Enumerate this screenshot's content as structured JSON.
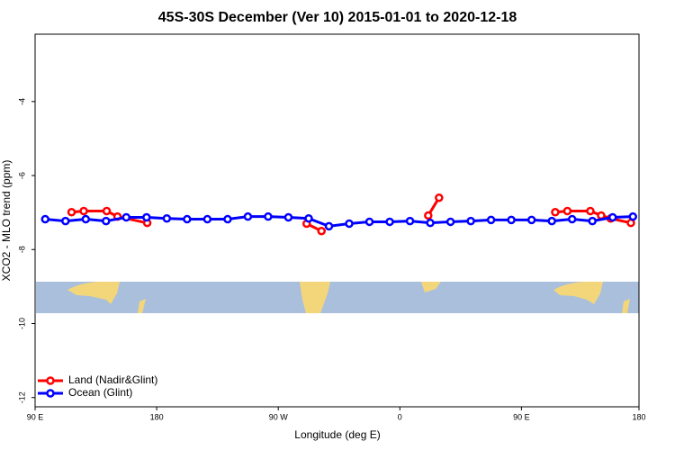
{
  "chart_data": {
    "type": "line",
    "title": "45S-30S December (Ver 10)   2015-01-01 to 2020-12-18",
    "x_label": "Longitude (deg E)",
    "y_label": "XCO2 - MLO trend (ppm)",
    "xlim": [
      90,
      537
    ],
    "ylim": [
      -12.25,
      -2.18
    ],
    "xticks": [
      {
        "value": 90,
        "label": "90 E"
      },
      {
        "value": 180,
        "label": "180"
      },
      {
        "value": 270,
        "label": "90 W"
      },
      {
        "value": 360,
        "label": "0"
      },
      {
        "value": 450,
        "label": "90 E"
      },
      {
        "value": 537,
        "label": "180"
      }
    ],
    "yticks": [
      -4,
      -6,
      -8,
      -10,
      -12
    ],
    "legend": "bottom-left",
    "series": [
      {
        "name": "Land (Nadir&Glint)",
        "color": "#ff0000",
        "x": [
          117,
          126,
          143,
          151,
          173,
          null,
          291,
          302,
          null,
          381,
          389,
          null,
          475,
          484,
          501,
          509,
          516,
          531
        ],
        "values": [
          -6.99,
          -6.96,
          -6.96,
          -7.11,
          -7.28,
          null,
          -7.3,
          -7.5,
          null,
          -7.08,
          -6.6,
          null,
          -6.99,
          -6.96,
          -6.96,
          -7.08,
          -7.16,
          -7.28
        ]
      },
      {
        "name": "Ocean (Glint)",
        "color": "#0000ff",
        "x": [
          97.5,
          112.5,
          127.5,
          142.5,
          157.5,
          172.5,
          187.5,
          202.5,
          217.5,
          232.5,
          247.5,
          262.5,
          277.5,
          292.5,
          307.5,
          322.5,
          337.5,
          352.5,
          367.5,
          382.5,
          397.5,
          412.5,
          427.5,
          442.5,
          457.5,
          472.5,
          487.5,
          502.5,
          517.5,
          532.5
        ],
        "values": [
          -7.18,
          -7.23,
          -7.18,
          -7.23,
          -7.13,
          -7.13,
          -7.16,
          -7.18,
          -7.18,
          -7.18,
          -7.11,
          -7.11,
          -7.13,
          -7.16,
          -7.37,
          -7.3,
          -7.25,
          -7.25,
          -7.23,
          -7.28,
          -7.25,
          -7.23,
          -7.2,
          -7.2,
          -7.2,
          -7.23,
          -7.18,
          -7.23,
          -7.13,
          -7.11
        ]
      }
    ]
  }
}
